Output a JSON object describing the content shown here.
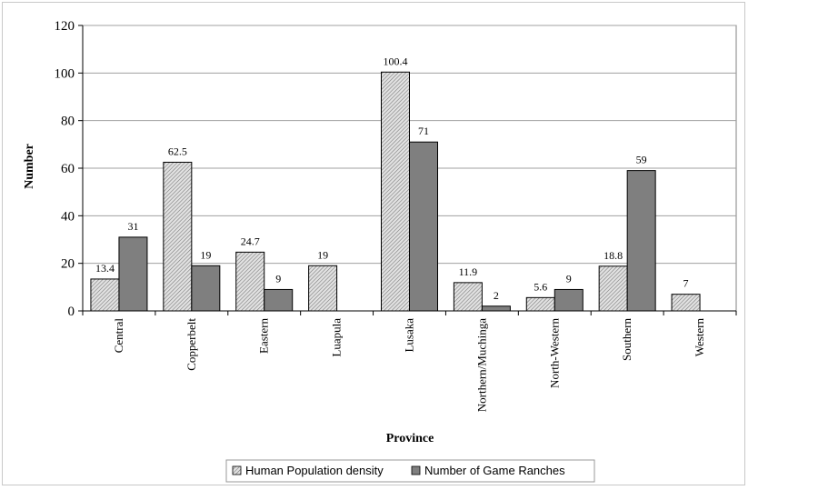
{
  "chart_data": {
    "type": "bar",
    "xlabel": "Province",
    "ylabel": "Number",
    "ylim": [
      0,
      120
    ],
    "yticks": [
      0,
      20,
      40,
      60,
      80,
      100,
      120
    ],
    "grid": true,
    "legend_position": "bottom",
    "categories": [
      "Central",
      "Copperbelt",
      "Eastern",
      "Luapula",
      "Lusaka",
      "Northern/Muchinga",
      "North-Western",
      "Southern",
      "Western"
    ],
    "series": [
      {
        "name": "Human Population density",
        "values": [
          13.4,
          62.5,
          24.7,
          19,
          100.4,
          11.9,
          5.6,
          18.8,
          7
        ],
        "labels": [
          "13.4",
          "62.5",
          "24.7",
          "19",
          "100.4",
          "11.9",
          "5.6",
          "18.8",
          "7"
        ],
        "color": "#c8c8c8",
        "pattern": "diagonal-hatch"
      },
      {
        "name": "Number of Game Ranches",
        "values": [
          31,
          19,
          9,
          0,
          71,
          2,
          9,
          59,
          0
        ],
        "labels": [
          "31",
          "19",
          "9",
          "",
          "71",
          "2",
          "9",
          "59",
          ""
        ],
        "color": "#7f7f7f",
        "pattern": "solid"
      }
    ]
  }
}
